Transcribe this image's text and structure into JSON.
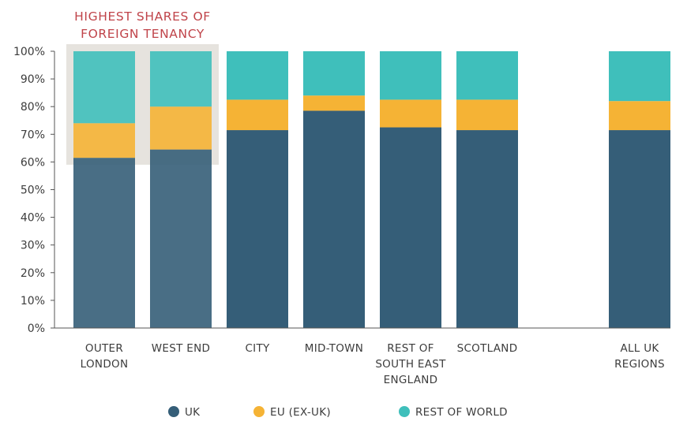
{
  "chart_data": {
    "type": "bar",
    "stacked": true,
    "categories": [
      [
        "OUTER",
        "LONDON"
      ],
      [
        "WEST END"
      ],
      [
        "CITY"
      ],
      [
        "MID-TOWN"
      ],
      [
        "REST OF",
        "SOUTH EAST",
        "ENGLAND"
      ],
      [
        "SCOTLAND"
      ],
      [
        "ALL UK",
        "REGIONS"
      ]
    ],
    "series": [
      {
        "name": "UK",
        "color": "#355e78",
        "values": [
          61.5,
          64.5,
          71.5,
          78.5,
          72.5,
          71.5,
          71.5
        ]
      },
      {
        "name": "EU (EX-UK)",
        "color": "#f5b335",
        "values": [
          12.5,
          15.5,
          11.0,
          5.5,
          10.0,
          11.0,
          10.5
        ]
      },
      {
        "name": "REST OF WORLD",
        "color": "#3fbfbb",
        "values": [
          26.0,
          20.0,
          17.5,
          16.0,
          17.5,
          17.5,
          18.0
        ]
      }
    ],
    "y_ticks": [
      "0%",
      "10%",
      "20%",
      "30%",
      "40%",
      "50%",
      "60%",
      "70%",
      "80%",
      "90%",
      "100%"
    ],
    "ylim": [
      0,
      100
    ],
    "grid": false,
    "legend_position": "bottom-center",
    "annotation": {
      "lines": [
        "HIGHEST SHARES OF",
        "FOREIGN TENANCY"
      ],
      "highlight_categories": [
        0,
        1
      ],
      "highlight_from_value": 59
    }
  }
}
